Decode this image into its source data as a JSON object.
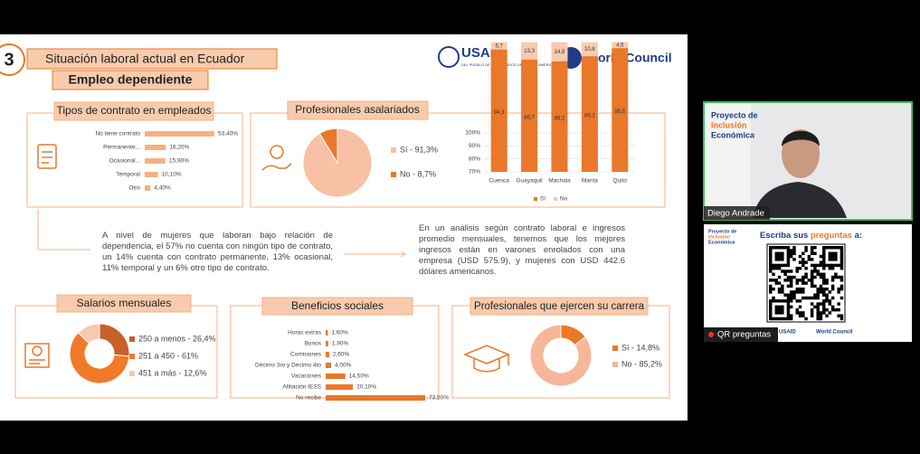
{
  "header": {
    "number": "3",
    "title": "Situación laboral actual en Ecuador",
    "subtitle": "Empleo dependiente"
  },
  "logos": {
    "usaid": "USAID",
    "usaid_tagline": "DEL PUEBLO DE LOS ESTADOS UNIDOS DE AMÉRICA",
    "world_council": "World Council"
  },
  "contract_types": {
    "title": "Tipos de contrato en empleados",
    "labels": [
      "No tiene contrato",
      "Permanente...",
      "Ocasional...",
      "Temporal",
      "Otro"
    ],
    "values": [
      53.4,
      16.2,
      15.9,
      10.1,
      4.4
    ],
    "value_labels": [
      "53,40%",
      "16,20%",
      "15,90%",
      "10,10%",
      "4,40%"
    ]
  },
  "salaried": {
    "title": "Profesionales asalariados",
    "pie": {
      "labels": [
        "Sí - 91,3%",
        "No - 8,7%"
      ],
      "values": [
        91.3,
        8.7
      ]
    },
    "by_city": {
      "categories": [
        "Cuenca",
        "Guayaquil",
        "Machala",
        "Manta",
        "Quito"
      ],
      "ylim": [
        70,
        100
      ],
      "yticks": [
        {
          "value": 70,
          "label": "70%"
        },
        {
          "value": 80,
          "label": "80%"
        },
        {
          "value": 90,
          "label": "90%"
        },
        {
          "value": 100,
          "label": "100%"
        }
      ],
      "series": [
        {
          "name": "Sí",
          "values": [
            94.3,
            86.7,
            85.2,
            89.2,
            95.5
          ],
          "value_labels": [
            "94,3",
            "86,7",
            "85,2",
            "89,2",
            "95,5"
          ]
        },
        {
          "name": "No",
          "values": [
            5.7,
            13.3,
            14.8,
            10.8,
            4.5
          ],
          "value_labels": [
            "5,7",
            "13,3",
            "14,8",
            "10,8",
            "4,5"
          ]
        }
      ]
    }
  },
  "text_left": "A nivel de mujeres que laboran bajo relación de dependencia, el 57% no cuenta con ningún tipo de contrato, un 14% cuenta con contrato permanente, 13% ocasional, 11% temporal y un 6% otro tipo de contrato.",
  "text_right": "En un análisis según contrato laboral e ingresos promedio mensuales, tenemos que los mejores ingresos están en varones enrolados con una empresa (USD 575.9), y mujeres con USD 442.6 dólares americanos.",
  "salaries": {
    "title": "Salarios mensuales",
    "labels": [
      "250 a menos - 26,4%",
      "251 a 450 - 61%",
      "451 a más - 12,6%"
    ],
    "values": [
      26.4,
      61,
      12.6
    ]
  },
  "benefits": {
    "title": "Beneficios sociales",
    "labels": [
      "Horas extras",
      "Bonos",
      "Comisiones",
      "Décimo 3ro y Décimo 4to",
      "Vacaciones",
      "Afiliación IESS",
      "No recibe"
    ],
    "values": [
      1.6,
      1.9,
      2.6,
      4.0,
      14.5,
      20.1,
      73.5
    ],
    "value_labels": [
      "1,60%",
      "1,90%",
      "2,60%",
      "4,00%",
      "14,50%",
      "20,10%",
      "73,50%"
    ]
  },
  "career": {
    "title": "Profesionales que ejercen su carrera",
    "labels": [
      "Sí - 14,8%",
      "No - 85,2%"
    ],
    "values": [
      14.8,
      85.2
    ]
  },
  "video": {
    "project": [
      "Proyecto de",
      "Inclusión",
      "Económica"
    ],
    "speaker": "Diego Andrade"
  },
  "qr": {
    "prompt": [
      "Escriba sus",
      "preguntas",
      "a:"
    ],
    "tag": "QR preguntas"
  }
}
